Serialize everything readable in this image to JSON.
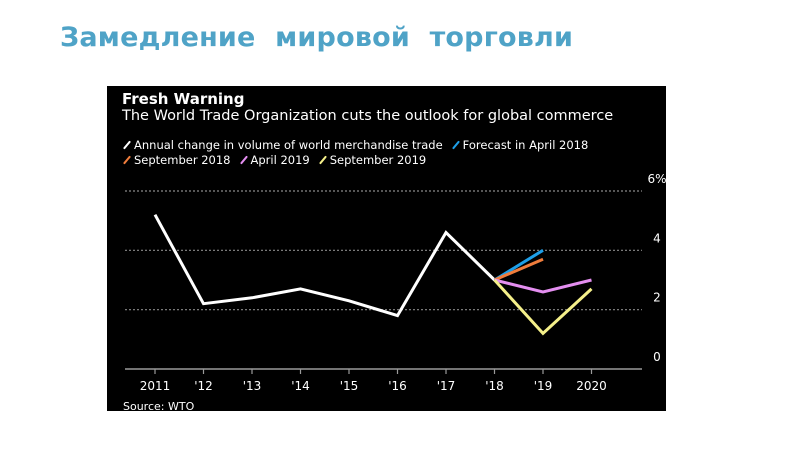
{
  "slide": {
    "title": "Замедление  мировой  торговли"
  },
  "chart_data": {
    "type": "line",
    "title": "Fresh Warning",
    "subtitle": "The World Trade Organization cuts the outlook for global commerce",
    "source": "Source: WTO",
    "xlabel": "",
    "ylabel": "",
    "categories": [
      "2011",
      "'12",
      "'13",
      "'14",
      "'15",
      "'16",
      "'17",
      "'18",
      "'19",
      "2020"
    ],
    "y_ticks": [
      {
        "value": 0,
        "label": "0"
      },
      {
        "value": 2,
        "label": "2"
      },
      {
        "value": 4,
        "label": "4"
      },
      {
        "value": 6,
        "label": "6%"
      }
    ],
    "ylim": [
      0,
      6
    ],
    "grid": true,
    "y_axis_side": "right",
    "legend_position": "top-left",
    "series": [
      {
        "name": "Annual change in volume of world merchandise trade",
        "color": "#ffffff",
        "values": [
          5.2,
          2.2,
          2.4,
          2.7,
          2.3,
          1.8,
          4.6,
          3.0,
          null,
          null
        ]
      },
      {
        "name": "Forecast in April 2018",
        "color": "#1e9fe8",
        "values": [
          null,
          null,
          null,
          null,
          null,
          null,
          null,
          3.0,
          4.0,
          null
        ]
      },
      {
        "name": "September 2018",
        "color": "#f07d3c",
        "values": [
          null,
          null,
          null,
          null,
          null,
          null,
          null,
          3.0,
          3.7,
          null
        ]
      },
      {
        "name": "April 2019",
        "color": "#e48ef0",
        "values": [
          null,
          null,
          null,
          null,
          null,
          null,
          null,
          3.0,
          2.6,
          3.0
        ]
      },
      {
        "name": "September 2019",
        "color": "#f5f08a",
        "values": [
          null,
          null,
          null,
          null,
          null,
          null,
          null,
          3.0,
          1.2,
          2.7
        ]
      }
    ]
  }
}
